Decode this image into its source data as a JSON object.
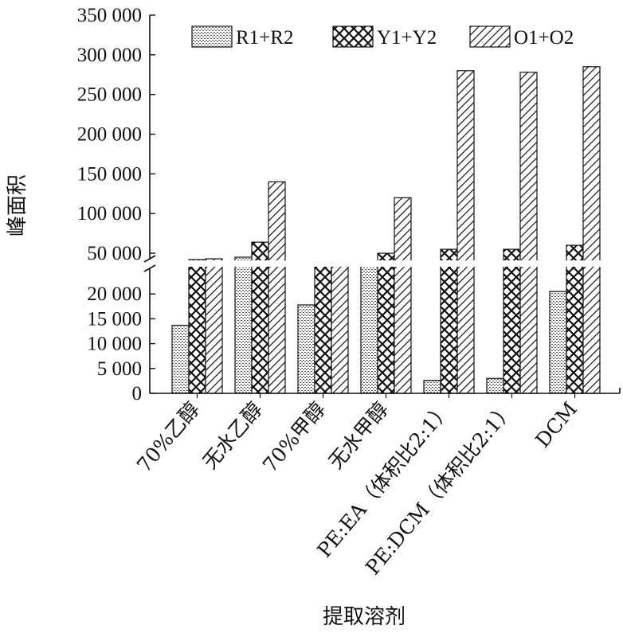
{
  "chart_data": {
    "type": "bar",
    "xlabel": "提取溶剂",
    "ylabel": "峰面积",
    "categories": [
      "70%乙醇",
      "无水乙醇",
      "70%甲醇",
      "无水甲醇",
      "PE:EA（体积比2:1）",
      "PE:DCM（体积比2:1）",
      "DCM"
    ],
    "series": [
      {
        "name": "R1+R2",
        "pattern": "dots",
        "values": [
          13700,
          45000,
          17800,
          36000,
          2600,
          3000,
          20500
        ]
      },
      {
        "name": "Y1+Y2",
        "pattern": "crosshatch",
        "values": [
          42000,
          64000,
          34000,
          50000,
          55000,
          55000,
          60000
        ]
      },
      {
        "name": "O1+O2",
        "pattern": "diagonal",
        "values": [
          43000,
          140000,
          33500,
          120000,
          280000,
          278000,
          285000
        ]
      }
    ],
    "y_axis_break": {
      "lower_range": [
        0,
        25000
      ],
      "upper_range": [
        30000,
        350000
      ]
    },
    "yticks_lower": [
      0,
      5000,
      10000,
      15000,
      20000
    ],
    "yticks_lower_labels": [
      "0",
      "5 000",
      "10 000",
      "15 000",
      "20 000"
    ],
    "yticks_upper": [
      50000,
      100000,
      150000,
      200000,
      250000,
      300000,
      350000
    ],
    "yticks_upper_labels": [
      "50 000",
      "100 000",
      "150 000",
      "200 000",
      "250 000",
      "300 000",
      "350 000"
    ],
    "legend_position": "top"
  }
}
